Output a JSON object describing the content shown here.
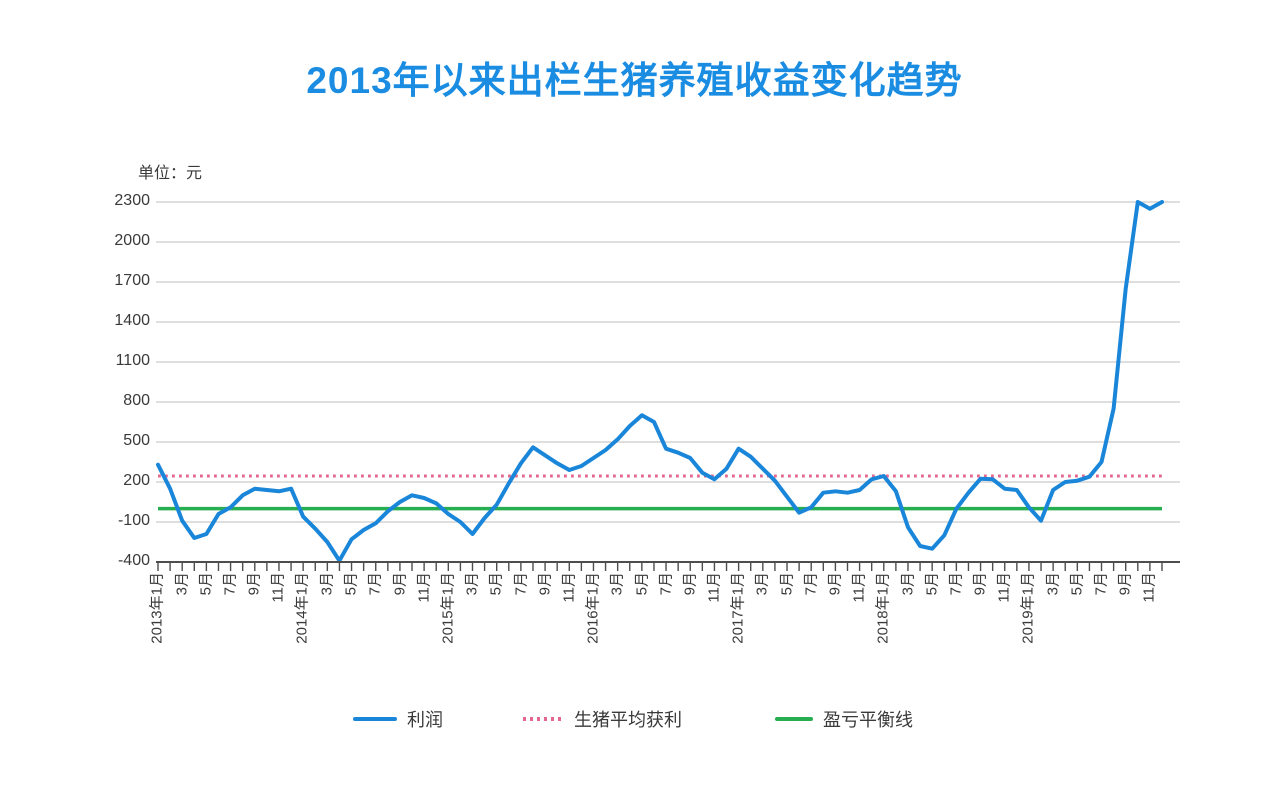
{
  "title": "2013年以来出栏生猪养殖收益变化趋势",
  "y_axis": {
    "unit_label": "单位：元",
    "ticks": [
      2300,
      2000,
      1700,
      1400,
      1100,
      800,
      500,
      200,
      -100,
      -400
    ]
  },
  "x_axis": {
    "label_interval_months": 2,
    "visible_labels": [
      "2013年1月",
      "3月",
      "5月",
      "7月",
      "9月",
      "11月",
      "2014年1月",
      "3月",
      "5月",
      "7月",
      "9月",
      "11月",
      "2015年1月",
      "3月",
      "5月",
      "7月",
      "9月",
      "11月",
      "2016年1月",
      "3月",
      "5月",
      "7月",
      "9月",
      "11月",
      "2017年1月",
      "3月",
      "5月",
      "7月",
      "9月",
      "11月",
      "2018年1月",
      "3月",
      "5月",
      "7月",
      "9月",
      "11月",
      "2019年1月",
      "3月",
      "5月",
      "7月",
      "9月",
      "11月"
    ]
  },
  "legend": {
    "items": [
      {
        "label": "利润",
        "style": "solid",
        "color": "#1a86d9"
      },
      {
        "label": "生猪平均获利",
        "style": "dotted",
        "color": "#e2688f"
      },
      {
        "label": "盈亏平衡线",
        "style": "solid",
        "color": "#27ae50"
      }
    ]
  },
  "colors": {
    "title": "#1a8ce2",
    "profit": "#1a86d9",
    "average": "#e2688f",
    "breakeven": "#27ae50",
    "grid": "#c9c9c9",
    "axis": "#4d4d4d",
    "text": "#3a3a3a"
  },
  "chart_data": {
    "type": "line",
    "title": "2013年以来出栏生猪养殖收益变化趋势",
    "ylabel": "单位：元",
    "ylim": [
      -400,
      2300
    ],
    "yticks": [
      2300,
      2000,
      1700,
      1400,
      1100,
      800,
      500,
      200,
      -100,
      -400
    ],
    "grid": "horizontal",
    "legend_position": "bottom",
    "x": [
      "2013-01",
      "2013-02",
      "2013-03",
      "2013-04",
      "2013-05",
      "2013-06",
      "2013-07",
      "2013-08",
      "2013-09",
      "2013-10",
      "2013-11",
      "2013-12",
      "2014-01",
      "2014-02",
      "2014-03",
      "2014-04",
      "2014-05",
      "2014-06",
      "2014-07",
      "2014-08",
      "2014-09",
      "2014-10",
      "2014-11",
      "2014-12",
      "2015-01",
      "2015-02",
      "2015-03",
      "2015-04",
      "2015-05",
      "2015-06",
      "2015-07",
      "2015-08",
      "2015-09",
      "2015-10",
      "2015-11",
      "2015-12",
      "2016-01",
      "2016-02",
      "2016-03",
      "2016-04",
      "2016-05",
      "2016-06",
      "2016-07",
      "2016-08",
      "2016-09",
      "2016-10",
      "2016-11",
      "2016-12",
      "2017-01",
      "2017-02",
      "2017-03",
      "2017-04",
      "2017-05",
      "2017-06",
      "2017-07",
      "2017-08",
      "2017-09",
      "2017-10",
      "2017-11",
      "2017-12",
      "2018-01",
      "2018-02",
      "2018-03",
      "2018-04",
      "2018-05",
      "2018-06",
      "2018-07",
      "2018-08",
      "2018-09",
      "2018-10",
      "2018-11",
      "2018-12",
      "2019-01",
      "2019-02",
      "2019-03",
      "2019-04",
      "2019-05",
      "2019-06",
      "2019-07",
      "2019-08",
      "2019-09",
      "2019-10",
      "2019-11",
      "2019-12"
    ],
    "series": [
      {
        "name": "利润",
        "type": "line",
        "color": "#1a86d9",
        "values": [
          330,
          150,
          -90,
          -220,
          -190,
          -40,
          10,
          100,
          150,
          140,
          130,
          150,
          -60,
          -150,
          -250,
          -390,
          -230,
          -160,
          -110,
          -20,
          50,
          100,
          80,
          40,
          -40,
          -100,
          -190,
          -70,
          30,
          190,
          340,
          460,
          400,
          340,
          290,
          320,
          380,
          440,
          520,
          620,
          700,
          650,
          450,
          420,
          380,
          270,
          220,
          300,
          450,
          390,
          300,
          210,
          90,
          -30,
          10,
          120,
          130,
          120,
          140,
          220,
          245,
          130,
          -140,
          -280,
          -300,
          -200,
          0,
          120,
          225,
          220,
          150,
          140,
          10,
          -90,
          140,
          200,
          210,
          240,
          350,
          750,
          1650,
          2300,
          2250,
          2300
        ]
      },
      {
        "name": "生猪平均获利",
        "type": "horizontal-dotted-line",
        "color": "#e2688f",
        "value": 245
      },
      {
        "name": "盈亏平衡线",
        "type": "horizontal-line",
        "color": "#27ae50",
        "value": 0
      }
    ]
  }
}
